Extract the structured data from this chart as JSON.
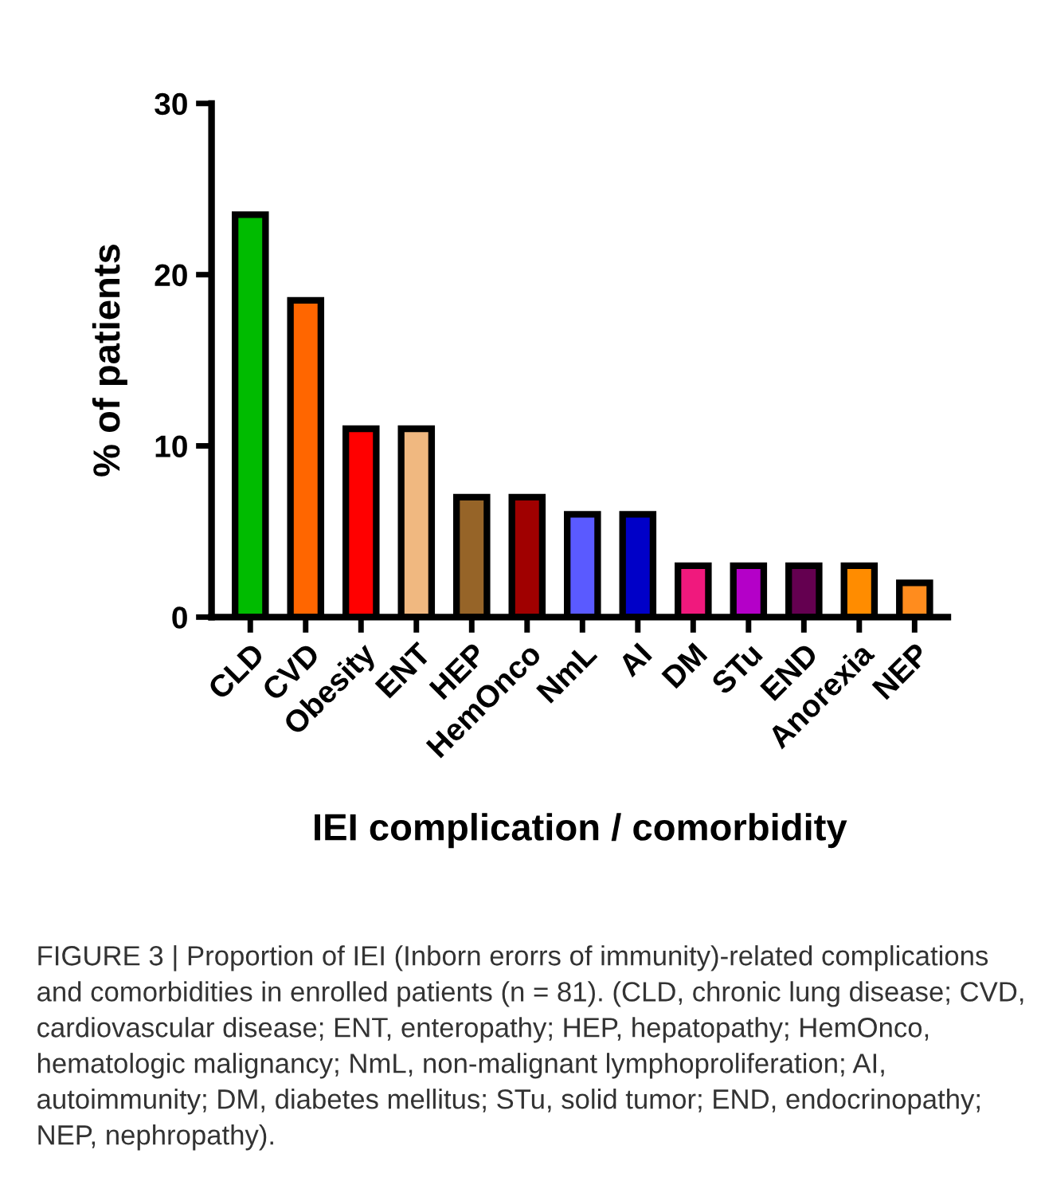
{
  "chart_data": {
    "type": "bar",
    "xlabel": "IEI complication / comorbidity",
    "ylabel": "% of patients",
    "categories": [
      "CLD",
      "CVD",
      "Obesity",
      "ENT",
      "HEP",
      "HemOnco",
      "NmL",
      "AI",
      "DM",
      "STu",
      "END",
      "Anorexia",
      "NEP"
    ],
    "values": [
      23.5,
      18.5,
      11,
      11,
      7,
      7,
      6,
      6,
      3,
      3,
      3,
      3,
      2
    ],
    "colors": [
      "#00bb00",
      "#ff6600",
      "#ff0000",
      "#f0b880",
      "#966428",
      "#a00000",
      "#5a5aff",
      "#0000c8",
      "#f0197d",
      "#b400c8",
      "#640050",
      "#ff8c00",
      "#ff8c1e"
    ],
    "ylim": [
      0,
      30
    ],
    "yticks": [
      0,
      10,
      20,
      30
    ],
    "grid": false,
    "legend": false,
    "annotations": [
      "FIGURE 3 | Proportion of IEI (Inborn erorrs of immunity)-related complications and comorbidities in enrolled patients (n = 81). (CLD, chronic lung disease; CVD, cardiovascular disease; ENT, enteropathy; HEP, hepatopathy; HemOnco, hematologic malignancy; NmL, non-malignant lymphoproliferation; AI, autoimmunity; DM, diabetes mellitus; STu, solid tumor; END, endocrinopathy; NEP, nephropathy)."
    ]
  }
}
